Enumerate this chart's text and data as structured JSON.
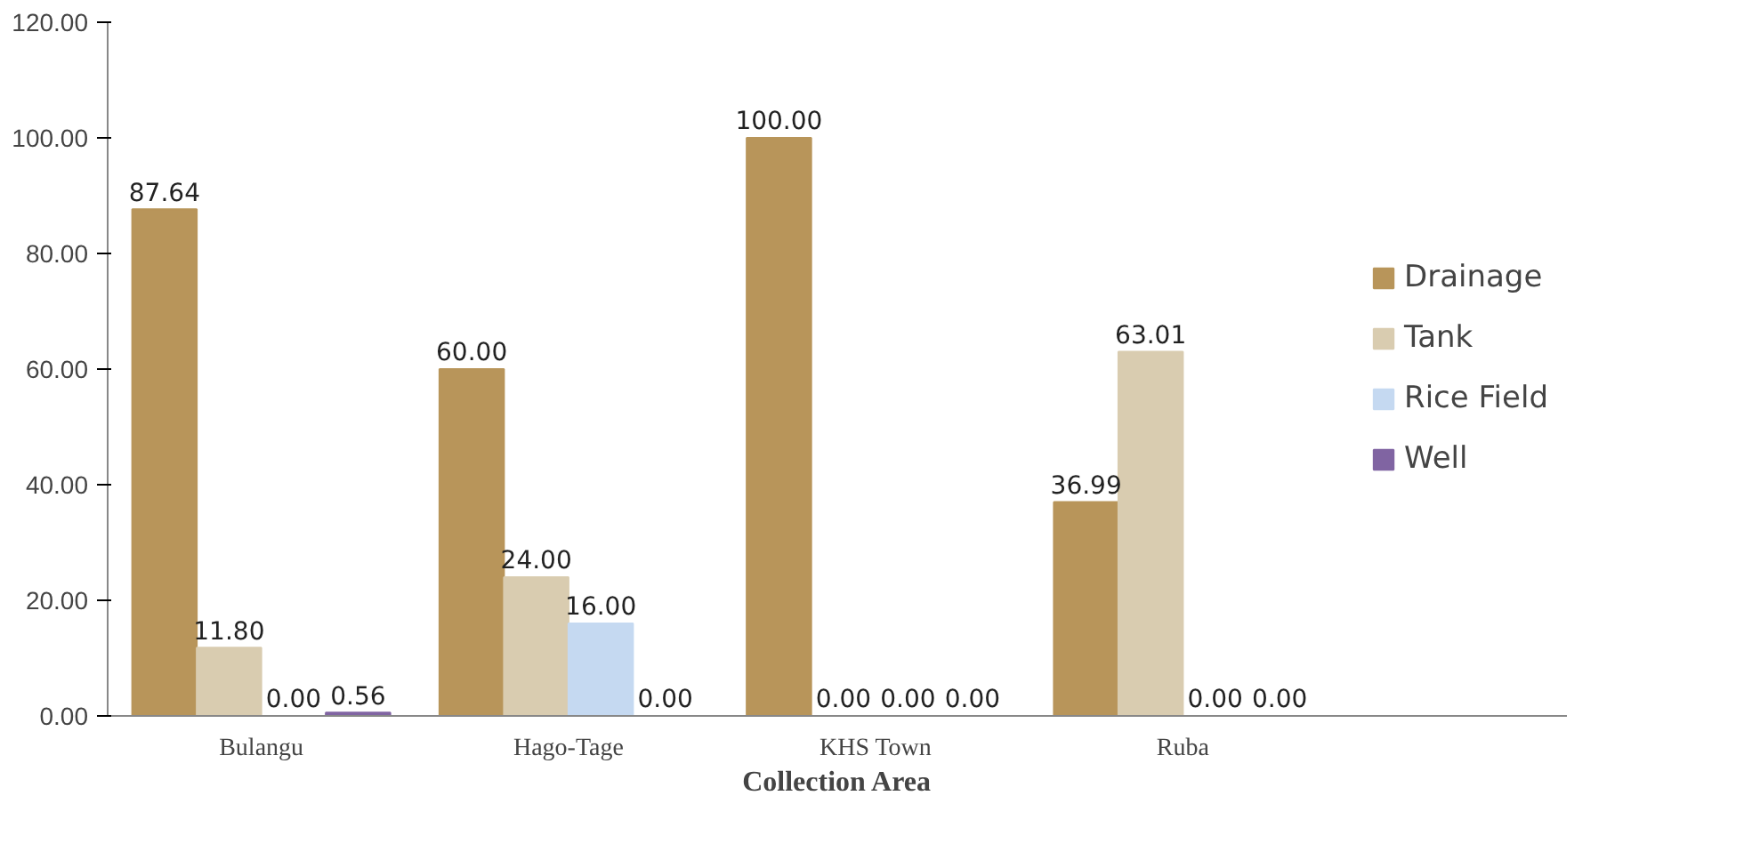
{
  "chart_data": {
    "type": "bar",
    "xlabel": "Collection Area",
    "categories": [
      "Bulangu",
      "Hago-Tage",
      "KHS Town",
      "Ruba"
    ],
    "series": [
      {
        "name": "Drainage",
        "color": "#b8955a",
        "values": [
          87.64,
          60.0,
          100.0,
          36.99
        ],
        "value_labels": [
          "87.64",
          "60.00",
          "100.00",
          "36.99"
        ]
      },
      {
        "name": "Tank",
        "color": "#d9ccb0",
        "values": [
          11.8,
          24.0,
          0.0,
          63.01
        ],
        "value_labels": [
          "11.80",
          "24.00",
          "0.00",
          "63.01"
        ]
      },
      {
        "name": "Rice Field",
        "color": "#c5d9f1",
        "values": [
          0.0,
          16.0,
          0.0,
          0.0
        ],
        "value_labels": [
          "0.00",
          "16.00",
          "0.00",
          "0.00"
        ]
      },
      {
        "name": "Well",
        "color": "#8064a2",
        "values": [
          0.56,
          0.0,
          0.0,
          0.0
        ],
        "value_labels": [
          "0.56",
          "0.00",
          "0.00",
          "0.00"
        ]
      }
    ],
    "ylim": [
      0,
      120
    ],
    "yticks": [
      {
        "value": 0,
        "label": "0.00"
      },
      {
        "value": 20,
        "label": "20.00"
      },
      {
        "value": 40,
        "label": "40.00"
      },
      {
        "value": 60,
        "label": "60.00"
      },
      {
        "value": 80,
        "label": "80.00"
      },
      {
        "value": 100,
        "label": "100.00"
      },
      {
        "value": 120,
        "label": "120.00"
      }
    ],
    "grid": false,
    "legend": "right"
  }
}
